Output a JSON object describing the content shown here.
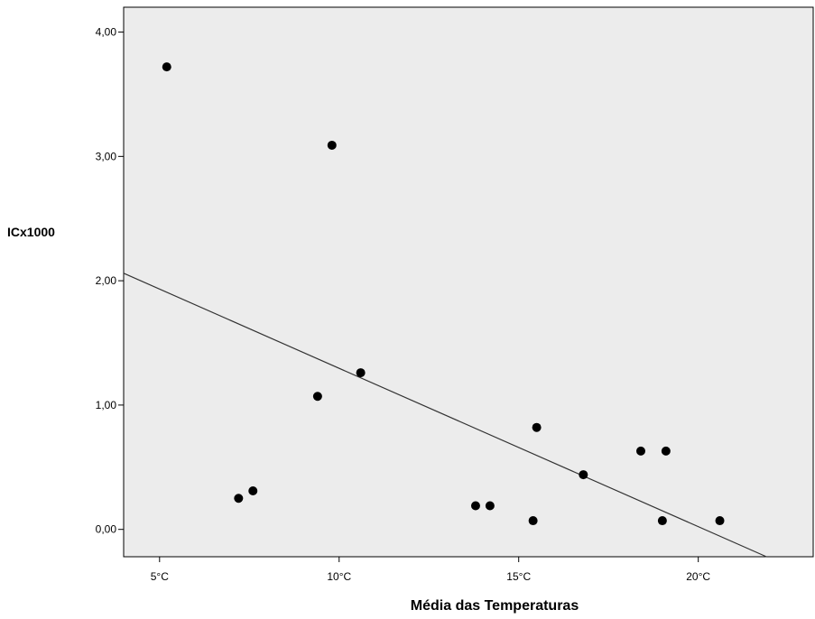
{
  "chart_data": {
    "type": "scatter",
    "title": "",
    "xlabel": "Média das Temperaturas",
    "ylabel": "ICx1000",
    "xlim": [
      4.0,
      23.2
    ],
    "ylim": [
      -0.22,
      4.2
    ],
    "x_ticks": [
      {
        "value": 5,
        "label": "5°C"
      },
      {
        "value": 10,
        "label": "10°C"
      },
      {
        "value": 15,
        "label": "15°C"
      },
      {
        "value": 20,
        "label": "20°C"
      }
    ],
    "y_ticks": [
      {
        "value": 0,
        "label": "0,00"
      },
      {
        "value": 1,
        "label": "1,00"
      },
      {
        "value": 2,
        "label": "2,00"
      },
      {
        "value": 3,
        "label": "3,00"
      },
      {
        "value": 4,
        "label": "4,00"
      }
    ],
    "points": [
      {
        "x": 5.2,
        "y": 3.72
      },
      {
        "x": 9.8,
        "y": 3.09
      },
      {
        "x": 10.6,
        "y": 1.26
      },
      {
        "x": 9.4,
        "y": 1.07
      },
      {
        "x": 7.2,
        "y": 0.25
      },
      {
        "x": 7.6,
        "y": 0.31
      },
      {
        "x": 13.8,
        "y": 0.19
      },
      {
        "x": 14.2,
        "y": 0.19
      },
      {
        "x": 15.4,
        "y": 0.07
      },
      {
        "x": 15.5,
        "y": 0.82
      },
      {
        "x": 16.8,
        "y": 0.44
      },
      {
        "x": 18.4,
        "y": 0.63
      },
      {
        "x": 19.1,
        "y": 0.63
      },
      {
        "x": 19.0,
        "y": 0.07
      },
      {
        "x": 20.6,
        "y": 0.07
      }
    ],
    "fit_line": {
      "x": [
        4.0,
        21.9
      ],
      "y": [
        2.06,
        -0.22
      ]
    },
    "grid": false,
    "colors": {
      "plot_background": "#ececec",
      "points": "#000000",
      "fit_line": "#333333",
      "axes": "#000000"
    }
  }
}
